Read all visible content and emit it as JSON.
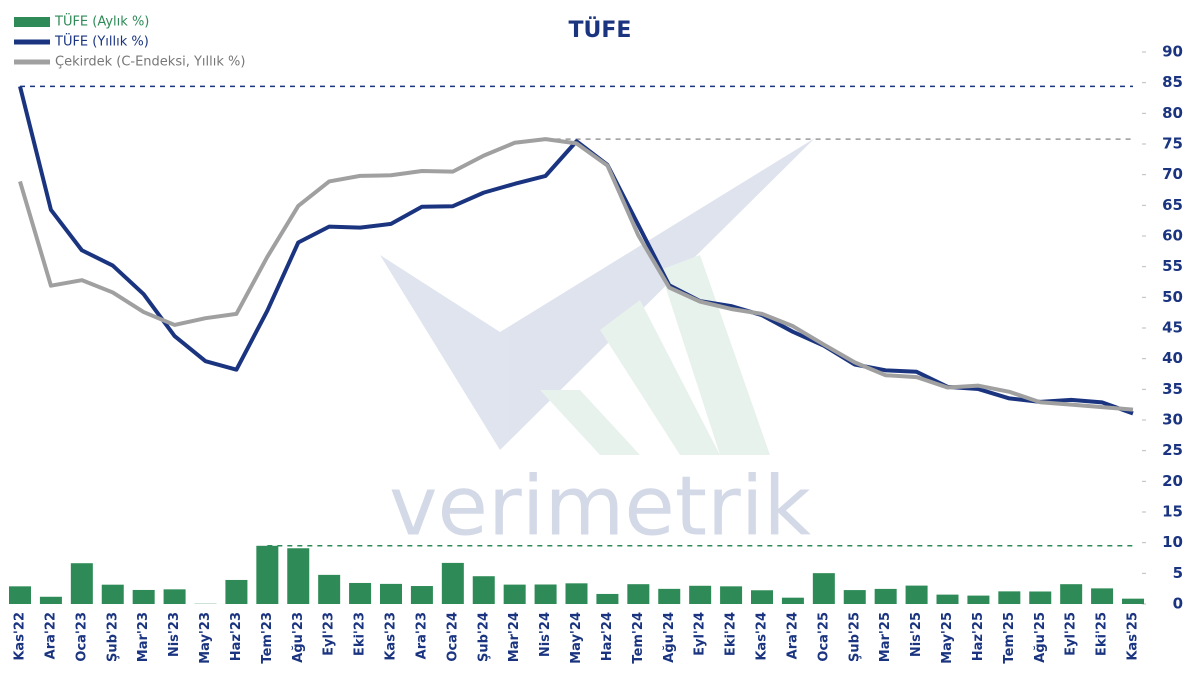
{
  "chart_data": {
    "type": "combo",
    "title": "TÜFE",
    "watermark": "verimetrik",
    "categories": [
      "Kas'22",
      "Ara'22",
      "Oca'23",
      "Şub'23",
      "Mar'23",
      "Nis'23",
      "May'23",
      "Haz'23",
      "Tem'23",
      "Ağu'23",
      "Eyl'23",
      "Eki'23",
      "Kas'23",
      "Ara'23",
      "Oca'24",
      "Şub'24",
      "Mar'24",
      "Nis'24",
      "May'24",
      "Haz'24",
      "Tem'24",
      "Ağu'24",
      "Eyl'24",
      "Eki'24",
      "Kas'24",
      "Ara'24",
      "Oca'25",
      "Şub'25",
      "Mar'25",
      "Nis'25",
      "May'25",
      "Haz'25",
      "Tem'25",
      "Ağu'25",
      "Eyl'25",
      "Eki'25",
      "Kas'25"
    ],
    "series": [
      {
        "name": "TÜFE (Aylık %)",
        "type": "bar",
        "color": "#2e8b57",
        "values": [
          2.88,
          1.18,
          6.65,
          3.15,
          2.29,
          2.39,
          0.04,
          3.92,
          9.49,
          9.09,
          4.75,
          3.43,
          3.28,
          2.93,
          6.7,
          4.53,
          3.16,
          3.18,
          3.37,
          1.64,
          3.23,
          2.47,
          2.97,
          2.88,
          2.24,
          1.03,
          5.03,
          2.27,
          2.46,
          3.0,
          1.53,
          1.37,
          2.06,
          2.04,
          3.23,
          2.55,
          0.87
        ]
      },
      {
        "name": "TÜFE (Yıllık %)",
        "type": "line",
        "color": "#1a3480",
        "values": [
          84.39,
          64.27,
          57.68,
          55.18,
          50.51,
          43.68,
          39.59,
          38.21,
          47.83,
          58.94,
          61.53,
          61.36,
          61.98,
          64.77,
          64.86,
          67.07,
          68.5,
          69.8,
          75.45,
          71.6,
          61.78,
          51.97,
          49.38,
          48.58,
          47.09,
          44.38,
          42.12,
          39.05,
          38.1,
          37.86,
          35.41,
          35.05,
          33.52,
          32.95,
          33.29,
          32.87,
          31.07
        ]
      },
      {
        "name": "Çekirdek (C-Endeksi, Yıllık %)",
        "type": "line",
        "color": "#a0a0a0",
        "values": [
          68.9,
          51.9,
          52.8,
          50.8,
          47.6,
          45.5,
          46.6,
          47.3,
          56.6,
          64.9,
          68.9,
          69.8,
          69.9,
          70.6,
          70.5,
          73.1,
          75.2,
          75.8,
          75.1,
          71.5,
          60.1,
          51.6,
          49.3,
          48.1,
          47.3,
          45.3,
          42.3,
          39.4,
          37.3,
          37.0,
          35.3,
          35.6,
          34.6,
          32.9,
          32.5,
          32.1,
          31.7
        ]
      }
    ],
    "ylim": [
      0,
      90
    ],
    "yticks": [
      0,
      5,
      10,
      15,
      20,
      25,
      30,
      35,
      40,
      45,
      50,
      55,
      60,
      65,
      70,
      75,
      80,
      85,
      90
    ]
  }
}
